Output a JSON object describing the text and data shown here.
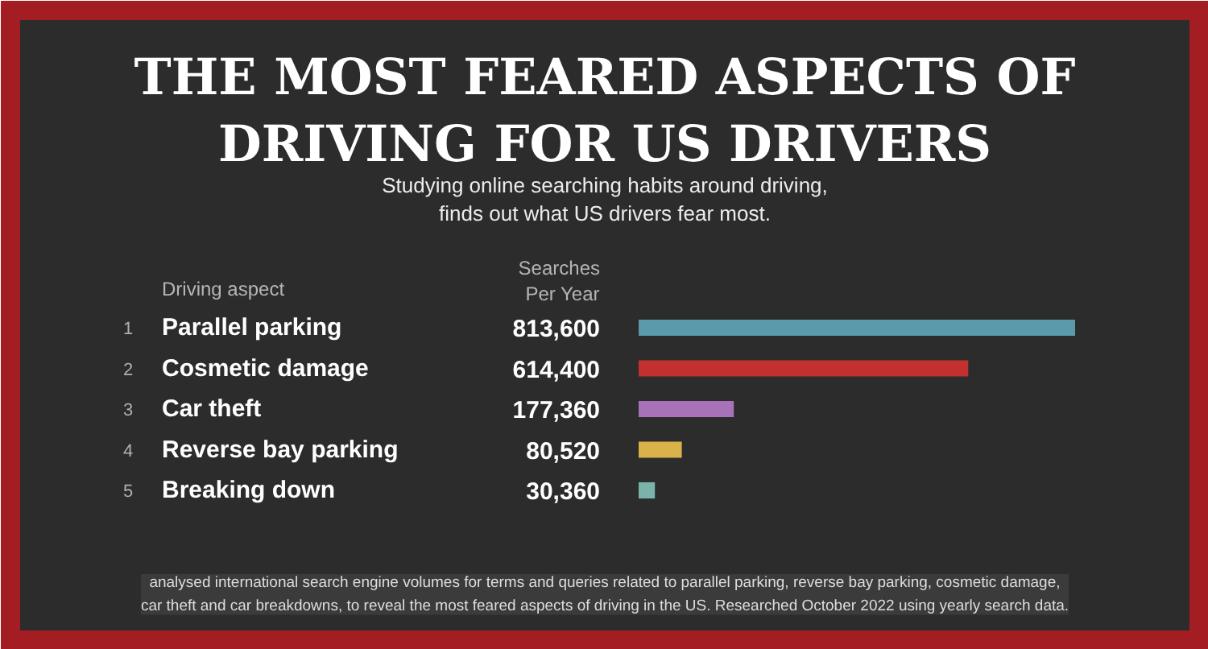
{
  "chart_data": {
    "type": "bar",
    "orientation": "horizontal",
    "title": "THE MOST FEARED ASPECTS OF DRIVING FOR US DRIVERS",
    "subtitle": "Studying online searching habits around driving, finds out what US drivers fear most.",
    "ylabel": "Driving aspect",
    "xlabel": "Searches Per Year",
    "categories": [
      "Parallel parking",
      "Cosmetic damage",
      "Car theft",
      "Reverse bay parking",
      "Breaking down"
    ],
    "values": [
      813600,
      614400,
      177360,
      80520,
      30360
    ],
    "colors": [
      "#5b9aab",
      "#c2312f",
      "#a872b8",
      "#d9b24a",
      "#7ab3a9"
    ],
    "value_labels": [
      "813,600",
      "614,400",
      "177,360",
      "80,520",
      "30,360"
    ],
    "annotations": [
      "1",
      "2",
      "3",
      "4",
      "5",
      "analysed international search engine volumes for terms and queries related to parallel parking, reverse bay parking, cosmetic damage, car theft and car breakdowns, to reveal the most feared aspects of driving in the US. Researched October 2022 using yearly search data."
    ]
  }
}
